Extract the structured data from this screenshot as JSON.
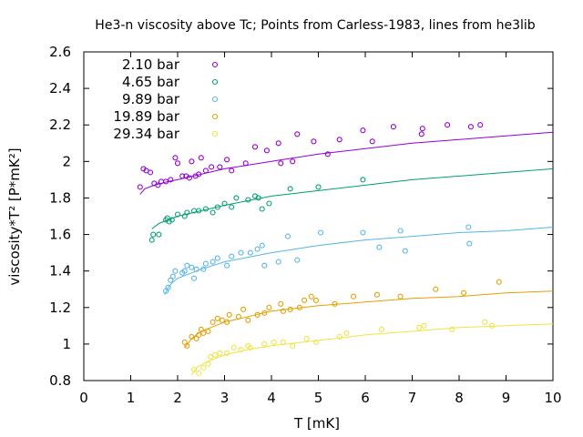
{
  "chart_data": {
    "type": "scatter",
    "title": "He3-n viscosity above Tc; Points from Carless-1983, lines from he3lib",
    "xlabel": "T [mK]",
    "ylabel": "viscosity*T² [P*mK²]",
    "xlim": [
      0,
      10
    ],
    "ylim": [
      0.8,
      2.6
    ],
    "xticks": [
      0,
      1,
      2,
      3,
      4,
      5,
      6,
      7,
      8,
      9,
      10
    ],
    "yticks": [
      0.8,
      1.0,
      1.2,
      1.4,
      1.6,
      1.8,
      2.0,
      2.2,
      2.4,
      2.6
    ],
    "xtick_labels": [
      "0",
      "1",
      "2",
      "3",
      "4",
      "5",
      "6",
      "7",
      "8",
      "9",
      "10"
    ],
    "ytick_labels": [
      "0.8",
      "1",
      "1.2",
      "1.4",
      "1.6",
      "1.8",
      "2",
      "2.2",
      "2.4",
      "2.6"
    ],
    "legend_position": "top-left",
    "grid": false,
    "marker": "open circle",
    "series": [
      {
        "name": "2.10 bar",
        "color": "#9400d3",
        "points": [
          [
            1.2,
            1.86
          ],
          [
            1.27,
            1.96
          ],
          [
            1.33,
            1.95
          ],
          [
            1.42,
            1.94
          ],
          [
            1.5,
            1.88
          ],
          [
            1.58,
            1.87
          ],
          [
            1.65,
            1.89
          ],
          [
            1.75,
            1.89
          ],
          [
            1.85,
            1.9
          ],
          [
            1.95,
            2.02
          ],
          [
            2.0,
            1.99
          ],
          [
            2.1,
            1.92
          ],
          [
            2.18,
            1.92
          ],
          [
            2.25,
            1.91
          ],
          [
            2.3,
            2.0
          ],
          [
            2.38,
            1.92
          ],
          [
            2.45,
            1.93
          ],
          [
            2.5,
            2.02
          ],
          [
            2.6,
            1.95
          ],
          [
            2.72,
            1.97
          ],
          [
            2.9,
            1.97
          ],
          [
            3.05,
            2.01
          ],
          [
            3.15,
            1.95
          ],
          [
            3.45,
            1.99
          ],
          [
            3.65,
            2.08
          ],
          [
            3.9,
            2.06
          ],
          [
            4.15,
            2.1
          ],
          [
            4.2,
            1.99
          ],
          [
            4.45,
            2.0
          ],
          [
            4.55,
            2.15
          ],
          [
            4.9,
            2.11
          ],
          [
            5.2,
            2.04
          ],
          [
            5.45,
            2.12
          ],
          [
            5.95,
            2.17
          ],
          [
            6.15,
            2.11
          ],
          [
            6.6,
            2.19
          ],
          [
            7.2,
            2.15
          ],
          [
            7.22,
            2.18
          ],
          [
            7.75,
            2.2
          ],
          [
            8.25,
            2.19
          ],
          [
            8.45,
            2.2
          ]
        ],
        "curve": [
          [
            1.2,
            1.82
          ],
          [
            1.3,
            1.85
          ],
          [
            1.5,
            1.87
          ],
          [
            1.8,
            1.89
          ],
          [
            2.0,
            1.9
          ],
          [
            2.5,
            1.93
          ],
          [
            3.0,
            1.96
          ],
          [
            4.0,
            2.0
          ],
          [
            5.0,
            2.04
          ],
          [
            6.0,
            2.07
          ],
          [
            7.0,
            2.1
          ],
          [
            8.0,
            2.12
          ],
          [
            9.0,
            2.14
          ],
          [
            10.0,
            2.16
          ]
        ]
      },
      {
        "name": "4.65 bar",
        "color": "#009e73",
        "points": [
          [
            1.45,
            1.57
          ],
          [
            1.48,
            1.6
          ],
          [
            1.6,
            1.6
          ],
          [
            1.75,
            1.68
          ],
          [
            1.78,
            1.69
          ],
          [
            1.82,
            1.67
          ],
          [
            1.88,
            1.68
          ],
          [
            2.0,
            1.71
          ],
          [
            2.15,
            1.7
          ],
          [
            2.2,
            1.72
          ],
          [
            2.35,
            1.73
          ],
          [
            2.45,
            1.73
          ],
          [
            2.6,
            1.74
          ],
          [
            2.75,
            1.72
          ],
          [
            2.85,
            1.75
          ],
          [
            3.0,
            1.77
          ],
          [
            3.15,
            1.75
          ],
          [
            3.25,
            1.8
          ],
          [
            3.5,
            1.79
          ],
          [
            3.65,
            1.81
          ],
          [
            3.72,
            1.8
          ],
          [
            3.8,
            1.74
          ],
          [
            3.95,
            1.77
          ],
          [
            4.4,
            1.85
          ],
          [
            5.0,
            1.86
          ],
          [
            5.95,
            1.9
          ]
        ],
        "curve": [
          [
            1.45,
            1.63
          ],
          [
            1.6,
            1.66
          ],
          [
            1.8,
            1.68
          ],
          [
            2.0,
            1.7
          ],
          [
            2.5,
            1.73
          ],
          [
            3.0,
            1.76
          ],
          [
            4.0,
            1.81
          ],
          [
            5.0,
            1.84
          ],
          [
            6.0,
            1.87
          ],
          [
            7.0,
            1.9
          ],
          [
            8.0,
            1.92
          ],
          [
            9.0,
            1.94
          ],
          [
            10.0,
            1.96
          ]
        ]
      },
      {
        "name": "9.89 bar",
        "color": "#56b4e9",
        "points": [
          [
            1.75,
            1.29
          ],
          [
            1.8,
            1.31
          ],
          [
            1.85,
            1.35
          ],
          [
            1.9,
            1.37
          ],
          [
            1.95,
            1.4
          ],
          [
            2.1,
            1.39
          ],
          [
            2.15,
            1.4
          ],
          [
            2.2,
            1.43
          ],
          [
            2.3,
            1.42
          ],
          [
            2.35,
            1.36
          ],
          [
            2.4,
            1.41
          ],
          [
            2.55,
            1.41
          ],
          [
            2.6,
            1.44
          ],
          [
            2.75,
            1.45
          ],
          [
            2.85,
            1.47
          ],
          [
            3.05,
            1.43
          ],
          [
            3.15,
            1.48
          ],
          [
            3.35,
            1.5
          ],
          [
            3.55,
            1.5
          ],
          [
            3.7,
            1.52
          ],
          [
            3.8,
            1.54
          ],
          [
            3.85,
            1.43
          ],
          [
            4.15,
            1.45
          ],
          [
            4.35,
            1.59
          ],
          [
            4.55,
            1.46
          ],
          [
            5.05,
            1.61
          ],
          [
            5.95,
            1.61
          ],
          [
            6.3,
            1.53
          ],
          [
            6.75,
            1.62
          ],
          [
            6.85,
            1.51
          ],
          [
            8.2,
            1.64
          ],
          [
            8.22,
            1.55
          ]
        ],
        "curve": [
          [
            1.72,
            1.27
          ],
          [
            1.8,
            1.31
          ],
          [
            1.9,
            1.34
          ],
          [
            2.0,
            1.36
          ],
          [
            2.5,
            1.41
          ],
          [
            3.0,
            1.45
          ],
          [
            4.0,
            1.5
          ],
          [
            5.0,
            1.54
          ],
          [
            6.0,
            1.57
          ],
          [
            7.0,
            1.59
          ],
          [
            8.0,
            1.61
          ],
          [
            9.0,
            1.62
          ],
          [
            10.0,
            1.64
          ]
        ]
      },
      {
        "name": "19.89 bar",
        "color": "#e69f00",
        "points": [
          [
            2.15,
            1.01
          ],
          [
            2.2,
            0.99
          ],
          [
            2.3,
            1.04
          ],
          [
            2.4,
            1.03
          ],
          [
            2.45,
            1.05
          ],
          [
            2.5,
            1.08
          ],
          [
            2.55,
            1.06
          ],
          [
            2.65,
            1.07
          ],
          [
            2.75,
            1.12
          ],
          [
            2.85,
            1.14
          ],
          [
            2.95,
            1.13
          ],
          [
            3.05,
            1.12
          ],
          [
            3.1,
            1.16
          ],
          [
            3.3,
            1.15
          ],
          [
            3.4,
            1.19
          ],
          [
            3.5,
            1.13
          ],
          [
            3.7,
            1.16
          ],
          [
            3.85,
            1.17
          ],
          [
            3.95,
            1.2
          ],
          [
            4.2,
            1.22
          ],
          [
            4.25,
            1.18
          ],
          [
            4.4,
            1.19
          ],
          [
            4.6,
            1.2
          ],
          [
            4.7,
            1.24
          ],
          [
            4.85,
            1.26
          ],
          [
            4.95,
            1.24
          ],
          [
            5.35,
            1.22
          ],
          [
            5.75,
            1.26
          ],
          [
            6.25,
            1.27
          ],
          [
            6.75,
            1.26
          ],
          [
            7.5,
            1.3
          ],
          [
            8.1,
            1.28
          ],
          [
            8.85,
            1.34
          ]
        ],
        "curve": [
          [
            2.15,
            0.98
          ],
          [
            2.3,
            1.03
          ],
          [
            2.5,
            1.07
          ],
          [
            2.8,
            1.1
          ],
          [
            3.0,
            1.12
          ],
          [
            3.5,
            1.15
          ],
          [
            4.0,
            1.18
          ],
          [
            5.0,
            1.21
          ],
          [
            6.0,
            1.23
          ],
          [
            7.0,
            1.25
          ],
          [
            8.0,
            1.26
          ],
          [
            9.0,
            1.28
          ],
          [
            10.0,
            1.29
          ]
        ]
      },
      {
        "name": "29.34 bar",
        "color": "#f0e442",
        "points": [
          [
            2.35,
            0.86
          ],
          [
            2.45,
            0.84
          ],
          [
            2.55,
            0.87
          ],
          [
            2.65,
            0.89
          ],
          [
            2.7,
            0.93
          ],
          [
            2.8,
            0.94
          ],
          [
            2.9,
            0.95
          ],
          [
            3.05,
            0.95
          ],
          [
            3.2,
            0.98
          ],
          [
            3.35,
            0.97
          ],
          [
            3.5,
            0.99
          ],
          [
            3.55,
            0.98
          ],
          [
            3.85,
            1.0
          ],
          [
            4.05,
            1.01
          ],
          [
            4.25,
            1.01
          ],
          [
            4.45,
            0.99
          ],
          [
            4.75,
            1.03
          ],
          [
            4.95,
            1.01
          ],
          [
            5.45,
            1.04
          ],
          [
            5.6,
            1.06
          ],
          [
            6.35,
            1.08
          ],
          [
            7.15,
            1.09
          ],
          [
            7.25,
            1.1
          ],
          [
            7.85,
            1.08
          ],
          [
            8.55,
            1.12
          ],
          [
            8.7,
            1.1
          ]
        ],
        "curve": [
          [
            2.3,
            0.83
          ],
          [
            2.4,
            0.87
          ],
          [
            2.6,
            0.9
          ],
          [
            2.8,
            0.92
          ],
          [
            3.0,
            0.94
          ],
          [
            3.5,
            0.97
          ],
          [
            4.0,
            0.99
          ],
          [
            5.0,
            1.02
          ],
          [
            6.0,
            1.05
          ],
          [
            7.0,
            1.07
          ],
          [
            8.0,
            1.09
          ],
          [
            9.0,
            1.1
          ],
          [
            10.0,
            1.11
          ]
        ]
      }
    ]
  }
}
